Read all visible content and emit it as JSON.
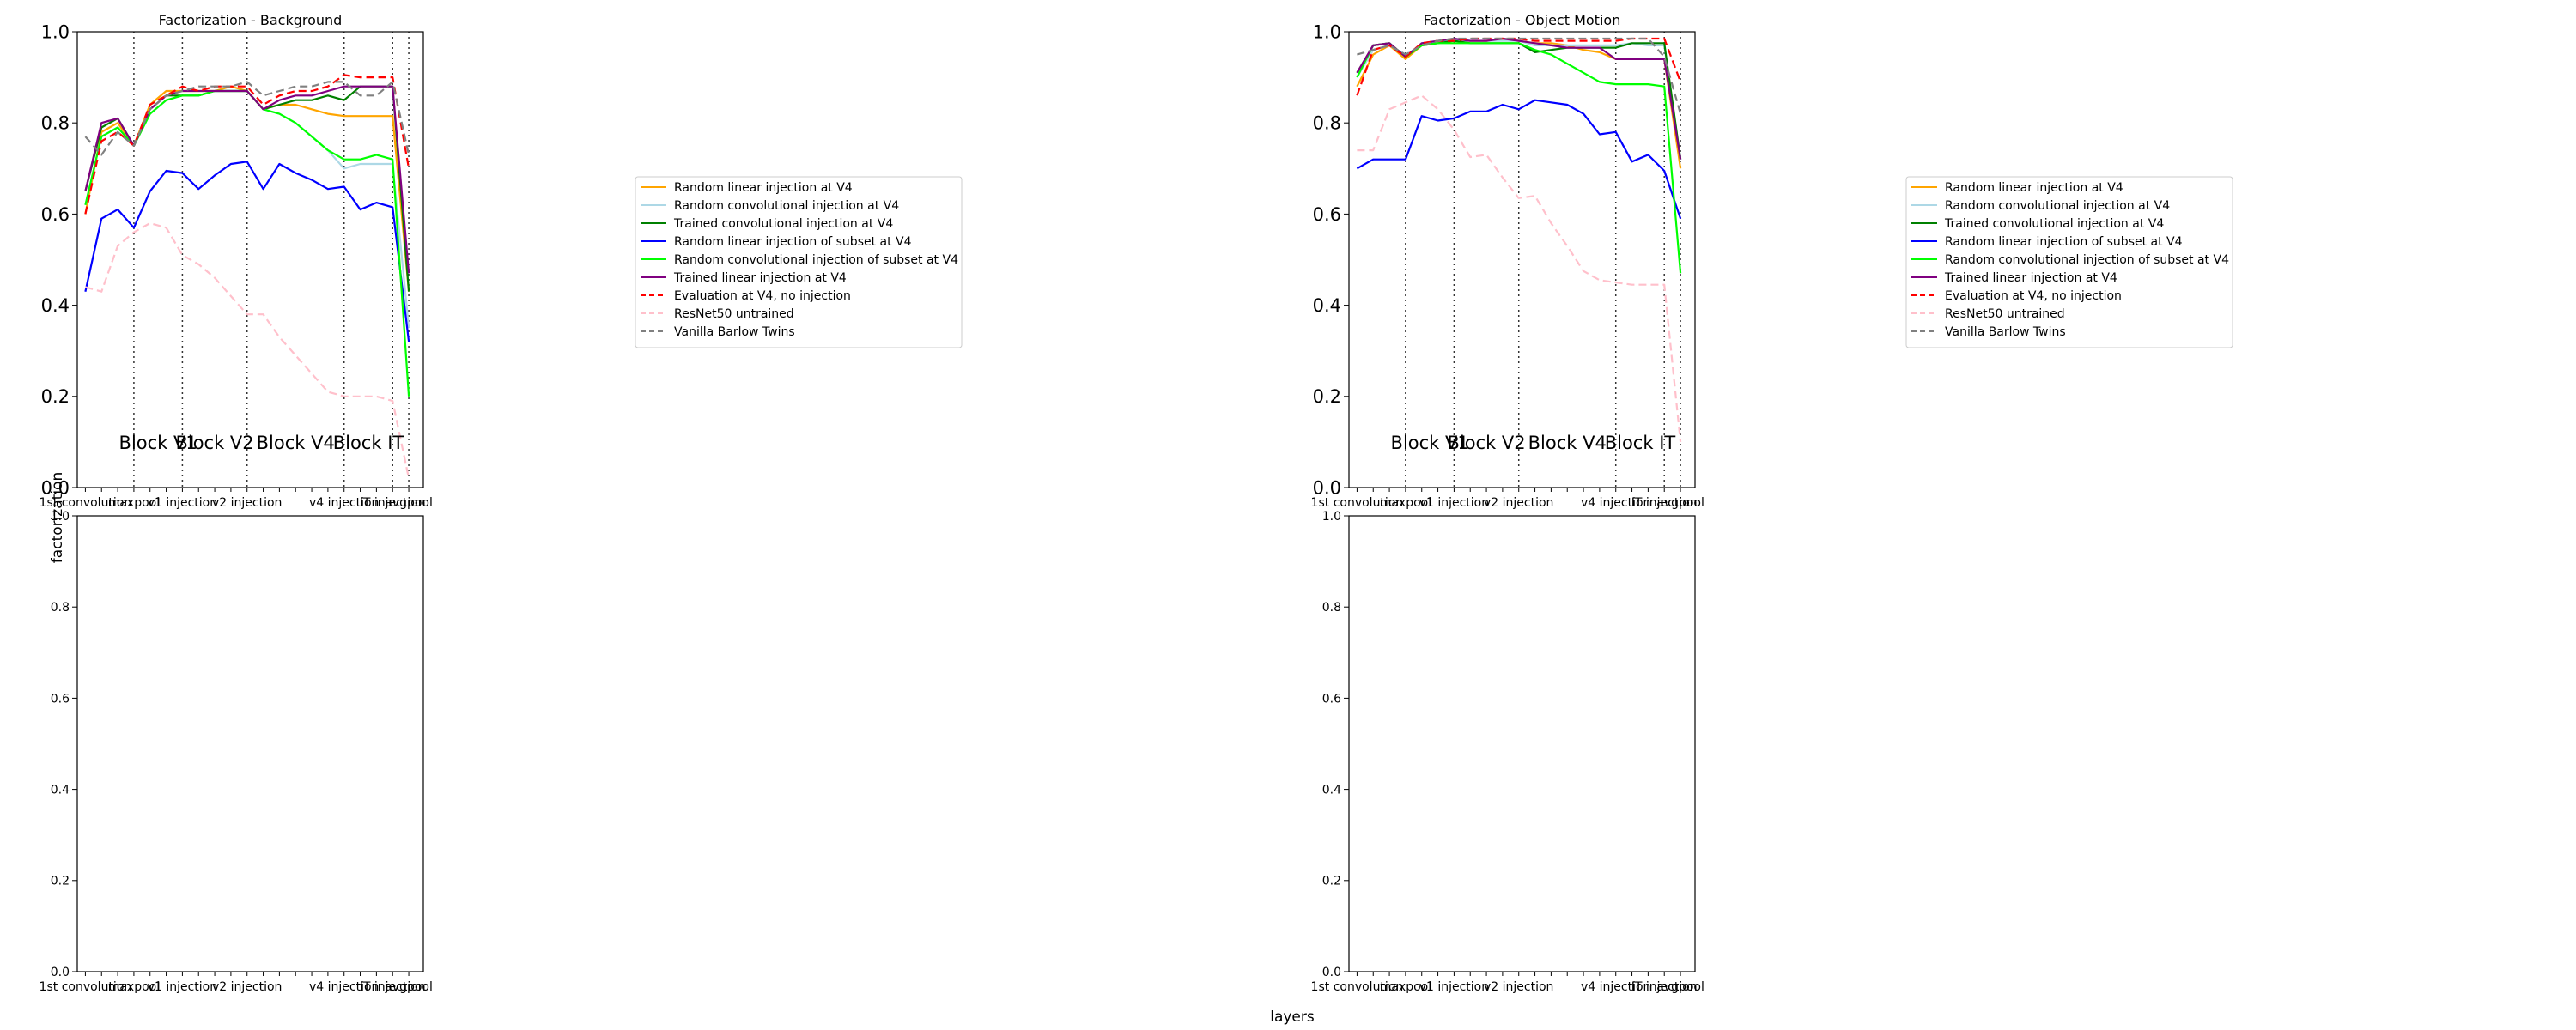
{
  "figure": {
    "xlabel": "layers",
    "ylabel": "factorization"
  },
  "legend": {
    "placement": "right of each top panel",
    "entries": [
      {
        "key": "rand_lin",
        "label": "Random linear injection at V4",
        "color": "#ffa500",
        "dash": "solid"
      },
      {
        "key": "rand_conv",
        "label": "Random convolutional injection at V4",
        "color": "#add8e6",
        "dash": "solid"
      },
      {
        "key": "trained_conv",
        "label": "Trained convolutional injection at V4",
        "color": "#008000",
        "dash": "solid"
      },
      {
        "key": "rand_lin_sub",
        "label": "Random linear injection of subset at V4",
        "color": "#0000ff",
        "dash": "solid"
      },
      {
        "key": "rand_conv_sub",
        "label": "Random convolutional injection of subset at V4",
        "color": "#00ff00",
        "dash": "solid"
      },
      {
        "key": "trained_lin",
        "label": "Trained linear injection at V4",
        "color": "#800080",
        "dash": "solid"
      },
      {
        "key": "eval_v4",
        "label": "Evaluation at V4, no injection",
        "color": "#ff0000",
        "dash": "dashed"
      },
      {
        "key": "resnet",
        "label": "ResNet50 untrained",
        "color": "#ffc0cb",
        "dash": "dashed"
      },
      {
        "key": "barlow",
        "label": "Vanilla Barlow Twins",
        "color": "#808080",
        "dash": "dashed"
      }
    ]
  },
  "chart_data": [
    {
      "type": "line",
      "title": "Factorization - Background",
      "ylim": [
        0,
        1
      ],
      "yticks": [
        "0.0",
        "0.2",
        "0.4",
        "0.6",
        "0.8",
        "1.0"
      ],
      "x_tick_labels": [
        {
          "x": 0,
          "label": "1st convolution"
        },
        {
          "x": 3,
          "label": "maxpool"
        },
        {
          "x": 6,
          "label": "v1 injection"
        },
        {
          "x": 10,
          "label": "v2 injection"
        },
        {
          "x": 16,
          "label": "v4 injection"
        },
        {
          "x": 19,
          "label": "IT injection"
        },
        {
          "x": 20,
          "label": "avgpool"
        }
      ],
      "region_lines": [
        3,
        6,
        10,
        16,
        19,
        20
      ],
      "region_labels": [
        {
          "x": 4.5,
          "label": "Block V1"
        },
        {
          "x": 8,
          "label": "Block V2"
        },
        {
          "x": 13,
          "label": "Block V4"
        },
        {
          "x": 17.5,
          "label": "Block IT"
        }
      ],
      "series": [
        {
          "key": "rand_lin",
          "values": [
            0.6,
            0.78,
            0.8,
            0.75,
            0.84,
            0.87,
            0.87,
            0.87,
            0.87,
            0.88,
            0.87,
            0.83,
            0.84,
            0.84,
            0.83,
            0.82,
            0.815,
            0.815,
            0.815,
            0.815,
            0.43
          ]
        },
        {
          "key": "rand_conv",
          "values": [
            0.62,
            0.77,
            0.79,
            0.75,
            0.82,
            0.85,
            0.86,
            0.86,
            0.87,
            0.87,
            0.87,
            0.83,
            0.82,
            0.8,
            0.77,
            0.74,
            0.7,
            0.71,
            0.71,
            0.71,
            0.35
          ]
        },
        {
          "key": "trained_conv",
          "values": [
            0.65,
            0.79,
            0.81,
            0.75,
            0.83,
            0.86,
            0.86,
            0.86,
            0.87,
            0.87,
            0.87,
            0.83,
            0.84,
            0.85,
            0.85,
            0.86,
            0.85,
            0.88,
            0.88,
            0.88,
            0.43
          ]
        },
        {
          "key": "rand_lin_sub",
          "values": [
            0.43,
            0.59,
            0.61,
            0.57,
            0.65,
            0.695,
            0.69,
            0.655,
            0.685,
            0.71,
            0.715,
            0.655,
            0.71,
            0.69,
            0.675,
            0.655,
            0.66,
            0.61,
            0.625,
            0.615,
            0.32
          ]
        },
        {
          "key": "rand_conv_sub",
          "values": [
            0.62,
            0.77,
            0.79,
            0.75,
            0.82,
            0.85,
            0.86,
            0.86,
            0.87,
            0.87,
            0.87,
            0.83,
            0.82,
            0.8,
            0.77,
            0.74,
            0.72,
            0.72,
            0.73,
            0.72,
            0.2
          ]
        },
        {
          "key": "trained_lin",
          "values": [
            0.65,
            0.8,
            0.81,
            0.75,
            0.83,
            0.86,
            0.87,
            0.87,
            0.87,
            0.87,
            0.87,
            0.83,
            0.85,
            0.86,
            0.86,
            0.87,
            0.88,
            0.88,
            0.88,
            0.88,
            0.47
          ]
        },
        {
          "key": "eval_v4",
          "values": [
            0.6,
            0.76,
            0.78,
            0.75,
            0.84,
            0.86,
            0.88,
            0.87,
            0.88,
            0.88,
            0.88,
            0.84,
            0.86,
            0.87,
            0.87,
            0.88,
            0.905,
            0.9,
            0.9,
            0.9,
            0.7
          ]
        },
        {
          "key": "resnet",
          "values": [
            0.44,
            0.43,
            0.53,
            0.56,
            0.58,
            0.57,
            0.51,
            0.49,
            0.46,
            0.42,
            0.38,
            0.38,
            0.33,
            0.29,
            0.25,
            0.21,
            0.2,
            0.2,
            0.2,
            0.19,
            0.02
          ]
        },
        {
          "key": "barlow",
          "values": [
            0.77,
            0.73,
            0.78,
            0.75,
            0.83,
            0.86,
            0.87,
            0.88,
            0.88,
            0.88,
            0.89,
            0.86,
            0.87,
            0.88,
            0.88,
            0.89,
            0.89,
            0.86,
            0.86,
            0.89,
            0.73
          ]
        }
      ]
    },
    {
      "type": "line",
      "title": "Factorization - Object Motion",
      "ylim": [
        0,
        1
      ],
      "yticks": [
        "0.0",
        "0.2",
        "0.4",
        "0.6",
        "0.8",
        "1.0"
      ],
      "x_tick_labels": [
        {
          "x": 0,
          "label": "1st convolution"
        },
        {
          "x": 3,
          "label": "maxpool"
        },
        {
          "x": 6,
          "label": "v1 injection"
        },
        {
          "x": 10,
          "label": "v2 injection"
        },
        {
          "x": 16,
          "label": "v4 injection"
        },
        {
          "x": 19,
          "label": "IT injection"
        },
        {
          "x": 20,
          "label": "avgpool"
        }
      ],
      "region_lines": [
        3,
        6,
        10,
        16,
        19,
        20
      ],
      "region_labels": [
        {
          "x": 4.5,
          "label": "Block V1"
        },
        {
          "x": 8,
          "label": "Block V2"
        },
        {
          "x": 13,
          "label": "Block V4"
        },
        {
          "x": 17.5,
          "label": "Block IT"
        }
      ],
      "series": [
        {
          "key": "rand_lin",
          "values": [
            0.88,
            0.95,
            0.97,
            0.94,
            0.97,
            0.98,
            0.98,
            0.98,
            0.98,
            0.985,
            0.98,
            0.975,
            0.975,
            0.97,
            0.96,
            0.955,
            0.94,
            0.94,
            0.94,
            0.94,
            0.7
          ]
        },
        {
          "key": "rand_conv",
          "values": [
            0.9,
            0.96,
            0.97,
            0.95,
            0.97,
            0.98,
            0.98,
            0.98,
            0.98,
            0.98,
            0.98,
            0.97,
            0.97,
            0.97,
            0.97,
            0.97,
            0.97,
            0.975,
            0.97,
            0.97,
            0.72
          ]
        },
        {
          "key": "trained_conv",
          "values": [
            0.91,
            0.97,
            0.975,
            0.945,
            0.97,
            0.975,
            0.98,
            0.975,
            0.975,
            0.975,
            0.975,
            0.955,
            0.96,
            0.965,
            0.965,
            0.965,
            0.965,
            0.975,
            0.975,
            0.975,
            0.72
          ]
        },
        {
          "key": "rand_lin_sub",
          "values": [
            0.7,
            0.72,
            0.72,
            0.72,
            0.815,
            0.805,
            0.81,
            0.825,
            0.825,
            0.84,
            0.83,
            0.85,
            0.845,
            0.84,
            0.82,
            0.775,
            0.78,
            0.715,
            0.73,
            0.695,
            0.59
          ]
        },
        {
          "key": "rand_conv_sub",
          "values": [
            0.9,
            0.97,
            0.975,
            0.945,
            0.97,
            0.975,
            0.975,
            0.975,
            0.975,
            0.975,
            0.975,
            0.96,
            0.95,
            0.93,
            0.91,
            0.89,
            0.885,
            0.885,
            0.885,
            0.88,
            0.47
          ]
        },
        {
          "key": "trained_lin",
          "values": [
            0.91,
            0.97,
            0.975,
            0.945,
            0.975,
            0.98,
            0.985,
            0.98,
            0.98,
            0.985,
            0.98,
            0.975,
            0.97,
            0.965,
            0.965,
            0.965,
            0.94,
            0.94,
            0.94,
            0.94,
            0.72
          ]
        },
        {
          "key": "eval_v4",
          "values": [
            0.86,
            0.96,
            0.97,
            0.945,
            0.975,
            0.98,
            0.98,
            0.985,
            0.985,
            0.985,
            0.985,
            0.98,
            0.98,
            0.98,
            0.98,
            0.98,
            0.98,
            0.985,
            0.985,
            0.985,
            0.89
          ]
        },
        {
          "key": "resnet",
          "values": [
            0.74,
            0.74,
            0.83,
            0.845,
            0.86,
            0.83,
            0.785,
            0.725,
            0.73,
            0.68,
            0.635,
            0.64,
            0.58,
            0.53,
            0.475,
            0.455,
            0.45,
            0.445,
            0.445,
            0.445,
            0.1
          ]
        },
        {
          "key": "barlow",
          "values": [
            0.95,
            0.96,
            0.97,
            0.95,
            0.97,
            0.98,
            0.985,
            0.985,
            0.985,
            0.985,
            0.985,
            0.985,
            0.985,
            0.985,
            0.985,
            0.985,
            0.985,
            0.985,
            0.985,
            0.945,
            0.82
          ]
        }
      ]
    },
    {
      "type": "line",
      "title": "",
      "ylim": [
        0,
        1
      ],
      "yticks": [
        "0.0",
        "0.2",
        "0.4",
        "0.6",
        "0.8",
        "1.0"
      ],
      "x_tick_labels": [
        {
          "x": 0,
          "label": "1st convolution"
        },
        {
          "x": 3,
          "label": "maxpool"
        },
        {
          "x": 6,
          "label": "v1 injection"
        },
        {
          "x": 10,
          "label": "v2 injection"
        },
        {
          "x": 16,
          "label": "v4 injection"
        },
        {
          "x": 19,
          "label": "IT injection"
        },
        {
          "x": 20,
          "label": "avgpool"
        }
      ],
      "series": []
    },
    {
      "type": "line",
      "title": "",
      "ylim": [
        0,
        1
      ],
      "yticks": [
        "0.0",
        "0.2",
        "0.4",
        "0.6",
        "0.8",
        "1.0"
      ],
      "x_tick_labels": [
        {
          "x": 0,
          "label": "1st convolution"
        },
        {
          "x": 3,
          "label": "maxpool"
        },
        {
          "x": 6,
          "label": "v1 injection"
        },
        {
          "x": 10,
          "label": "v2 injection"
        },
        {
          "x": 16,
          "label": "v4 injection"
        },
        {
          "x": 19,
          "label": "IT injection"
        },
        {
          "x": 20,
          "label": "avgpool"
        }
      ],
      "series": []
    }
  ]
}
